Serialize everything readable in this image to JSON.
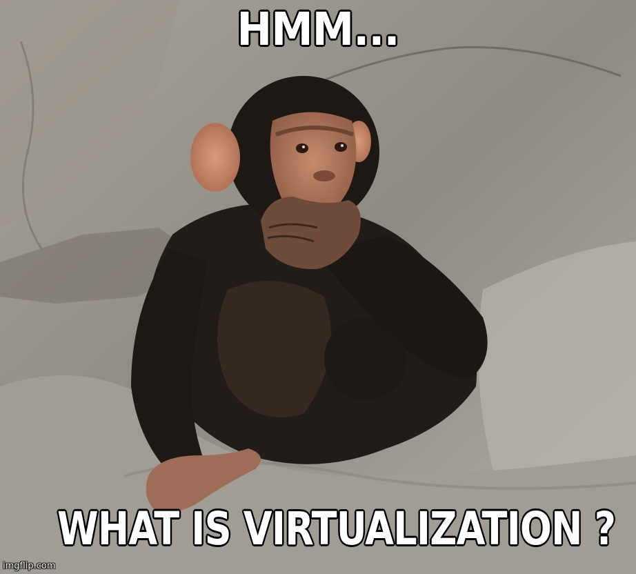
{
  "meme": {
    "top_text": "HMM...",
    "bottom_text": "WHAT IS VIRTUALIZATION ?",
    "watermark": "imgflip.com"
  },
  "image": {
    "subject_icon": "chimpanzee-photo"
  },
  "colors": {
    "caption_fill": "#ffffff",
    "caption_stroke": "#000000",
    "rock": "#9a958c",
    "fur": "#1f1a17",
    "skin": "#b97f63"
  }
}
